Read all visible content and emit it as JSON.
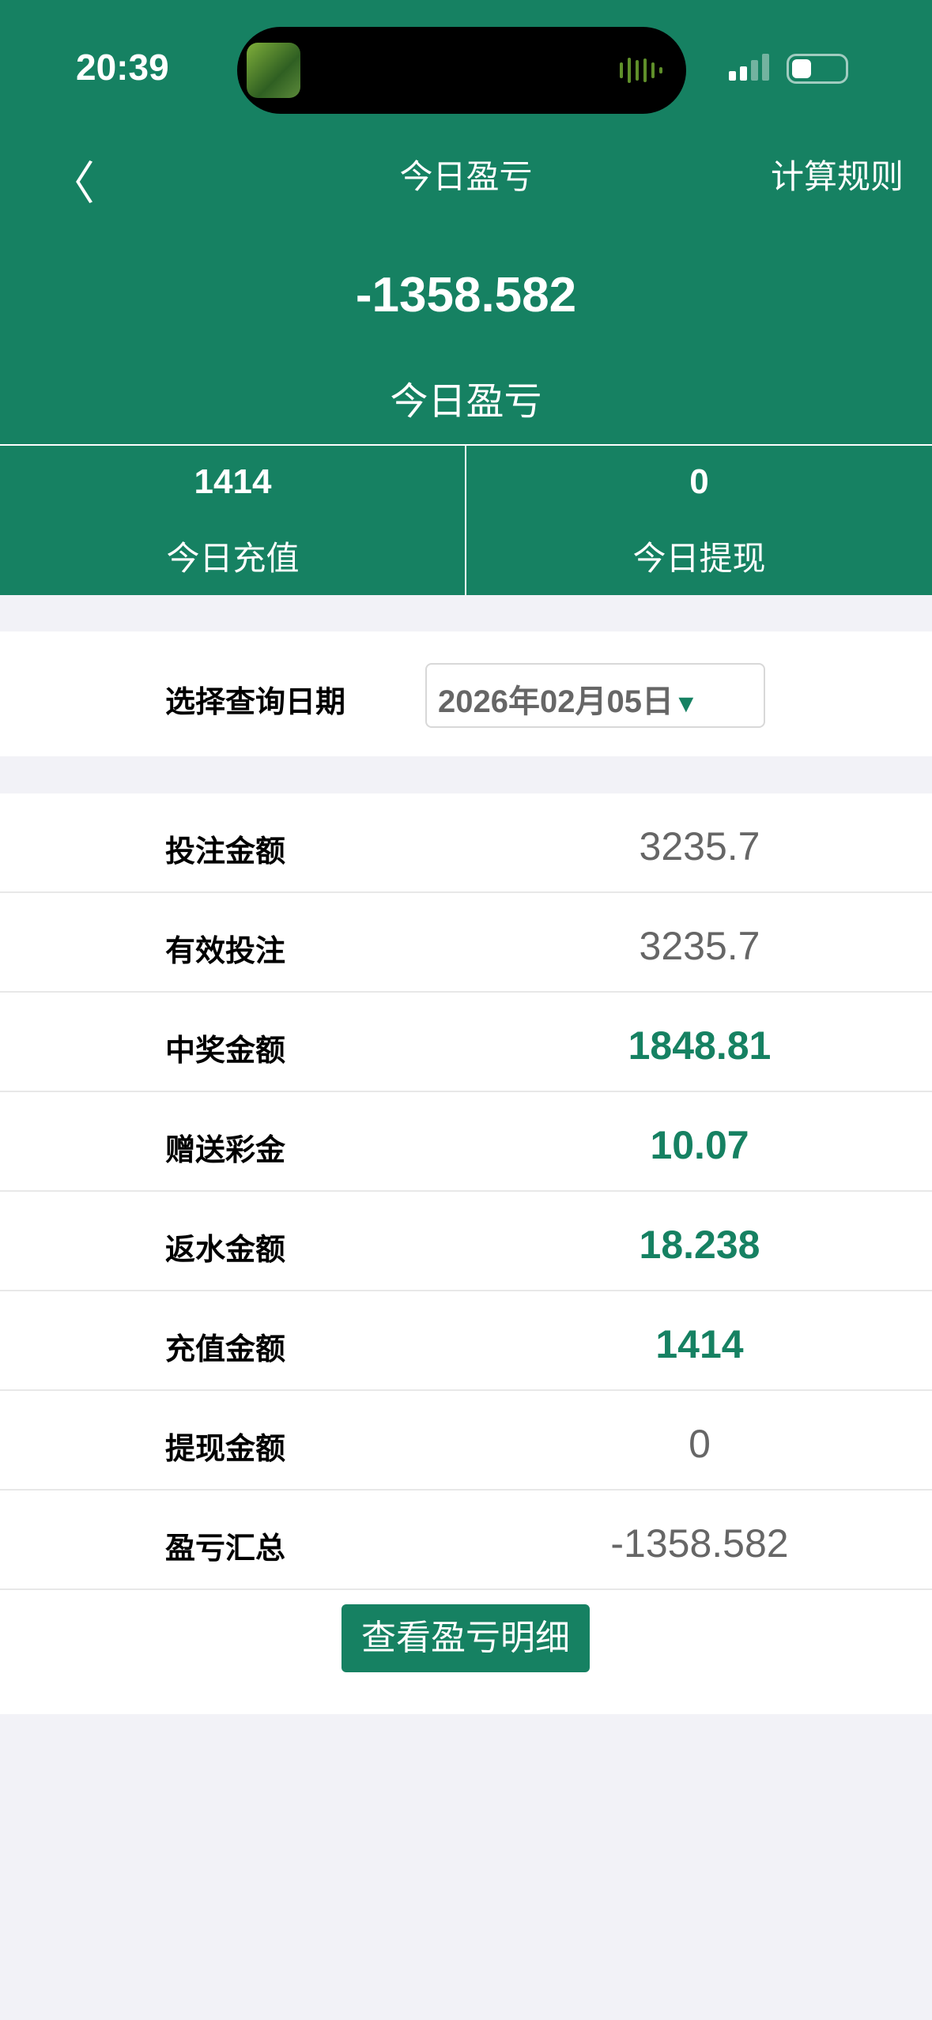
{
  "status_bar": {
    "time": "20:39"
  },
  "nav": {
    "title": "今日盈亏",
    "right_link": "计算规则"
  },
  "summary": {
    "value": "-1358.582",
    "label": "今日盈亏"
  },
  "stats": [
    {
      "value": "1414",
      "label": "今日充值"
    },
    {
      "value": "0",
      "label": "今日提现"
    }
  ],
  "date_query": {
    "label": "选择查询日期",
    "selected": "2026年02月05日"
  },
  "rows": [
    {
      "label": "投注金额",
      "value": "3235.7",
      "highlight": false
    },
    {
      "label": "有效投注",
      "value": "3235.7",
      "highlight": false
    },
    {
      "label": "中奖金额",
      "value": "1848.81",
      "highlight": true
    },
    {
      "label": "赠送彩金",
      "value": "10.07",
      "highlight": true
    },
    {
      "label": "返水金额",
      "value": "18.238",
      "highlight": true
    },
    {
      "label": "充值金额",
      "value": "1414",
      "highlight": true
    },
    {
      "label": "提现金额",
      "value": "0",
      "highlight": false
    },
    {
      "label": "盈亏汇总",
      "value": "-1358.582",
      "highlight": false
    }
  ],
  "detail_button": "查看盈亏明细",
  "colors": {
    "brand": "#168162",
    "background": "#f2f2f7",
    "value_gray": "#666666"
  }
}
